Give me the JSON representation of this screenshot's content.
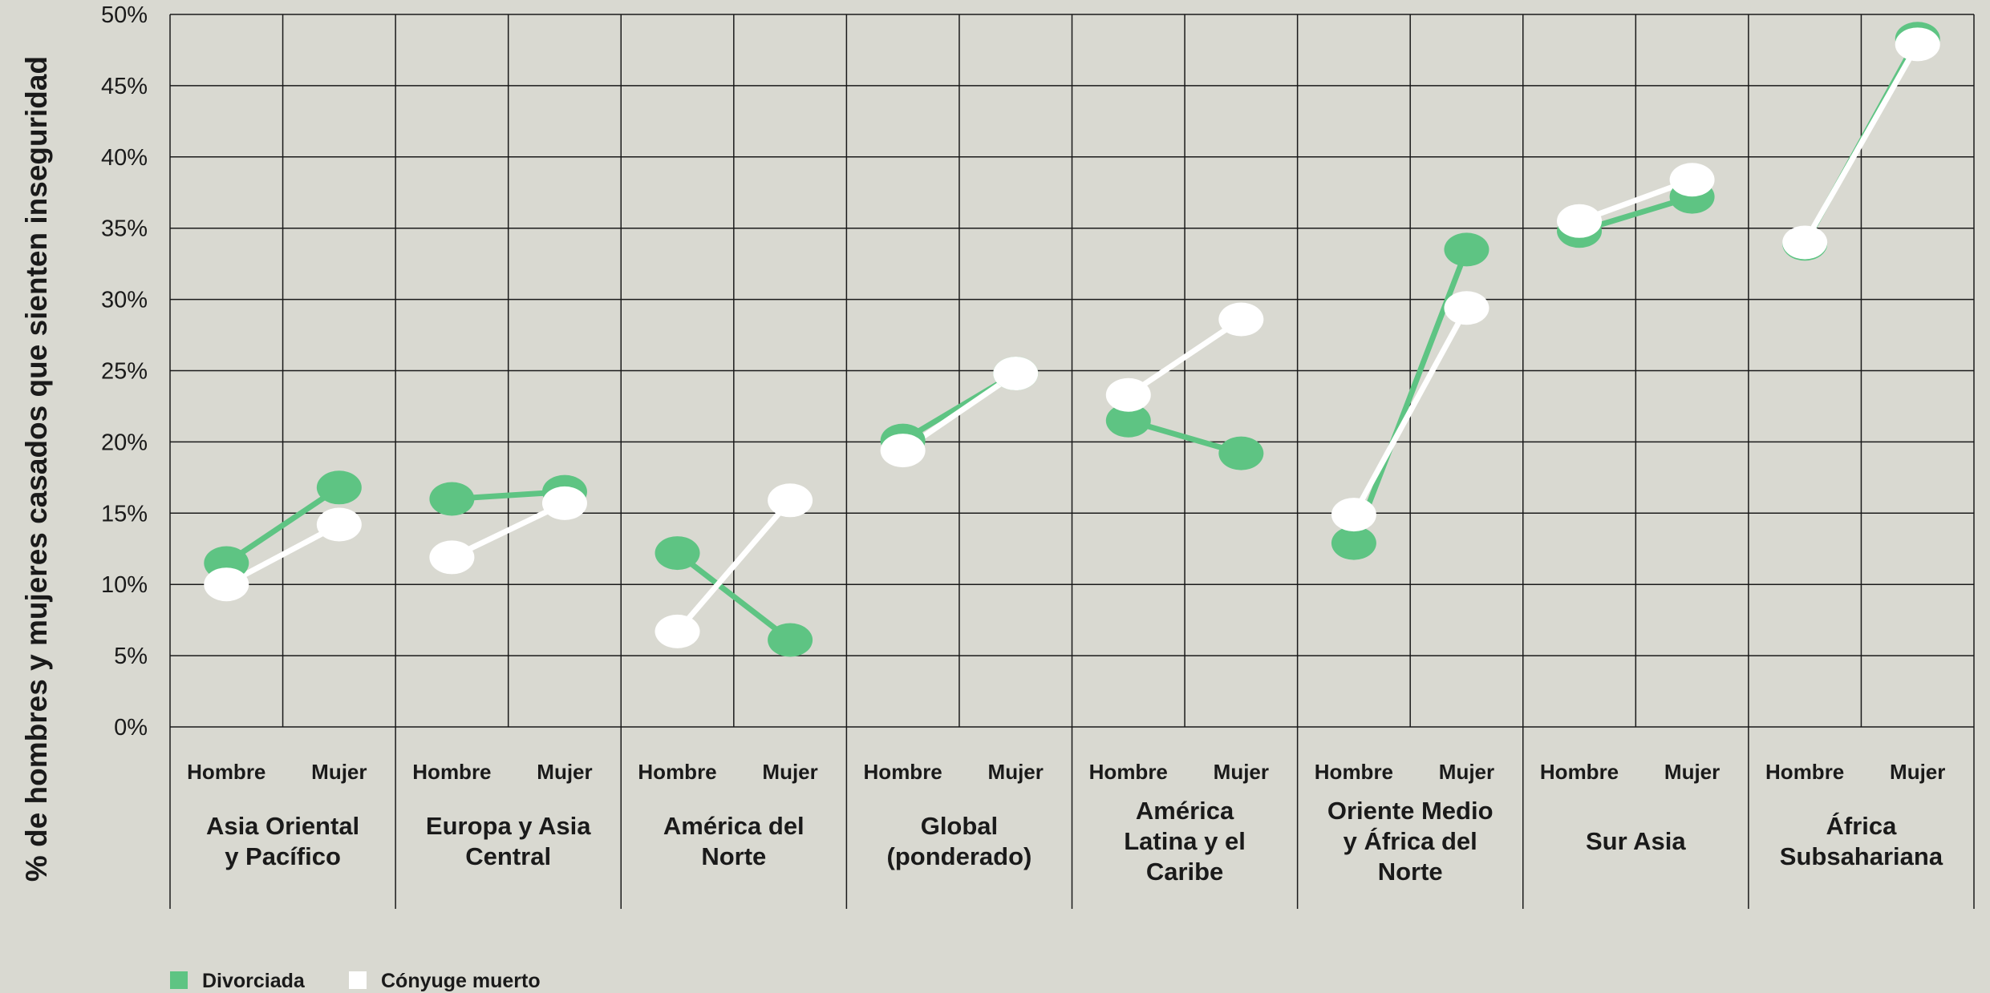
{
  "colors": {
    "background": "#d9d9d1",
    "grid": "#1a1a1a",
    "divorced": "#5ec483",
    "widowed": "#ffffff"
  },
  "chart_data": {
    "type": "line",
    "ylabel": "% de hombres y mujeres casados que sienten inseguridad",
    "ylim": [
      0,
      50
    ],
    "yticks": [
      "0%",
      "5%",
      "10%",
      "15%",
      "20%",
      "25%",
      "30%",
      "35%",
      "40%",
      "45%",
      "50%"
    ],
    "subcategories": [
      "Hombre",
      "Mujer"
    ],
    "grid": true,
    "legend_position": "bottom-left",
    "legend": [
      "Divorciada",
      "Cónyuge muerto"
    ],
    "groups": [
      {
        "name": [
          "Asia Oriental",
          "y Pacífico"
        ],
        "Divorciada": [
          11.5,
          16.8
        ],
        "Cónyuge muerto": [
          10.0,
          14.2
        ]
      },
      {
        "name": [
          "Europa y Asia",
          "Central"
        ],
        "Divorciada": [
          16.0,
          16.5
        ],
        "Cónyuge muerto": [
          11.9,
          15.7
        ]
      },
      {
        "name": [
          "América del",
          "Norte"
        ],
        "Divorciada": [
          12.2,
          6.1
        ],
        "Cónyuge muerto": [
          6.7,
          15.9
        ]
      },
      {
        "name": [
          "Global",
          "(ponderado)"
        ],
        "Divorciada": [
          20.1,
          24.8
        ],
        "Cónyuge muerto": [
          19.4,
          24.8
        ]
      },
      {
        "name": [
          "América",
          "Latina y el",
          "Caribe"
        ],
        "Divorciada": [
          21.5,
          19.2
        ],
        "Cónyuge muerto": [
          23.3,
          28.6
        ]
      },
      {
        "name": [
          "Oriente Medio",
          "y África del",
          "Norte"
        ],
        "Divorciada": [
          12.9,
          33.5
        ],
        "Cónyuge muerto": [
          14.9,
          29.4
        ]
      },
      {
        "name": [
          "Sur Asia"
        ],
        "Divorciada": [
          34.8,
          37.2
        ],
        "Cónyuge muerto": [
          35.5,
          38.4
        ]
      },
      {
        "name": [
          "África",
          "Subsahariana"
        ],
        "Divorciada": [
          33.9,
          48.3
        ],
        "Cónyuge muerto": [
          34.0,
          47.9
        ]
      }
    ]
  }
}
